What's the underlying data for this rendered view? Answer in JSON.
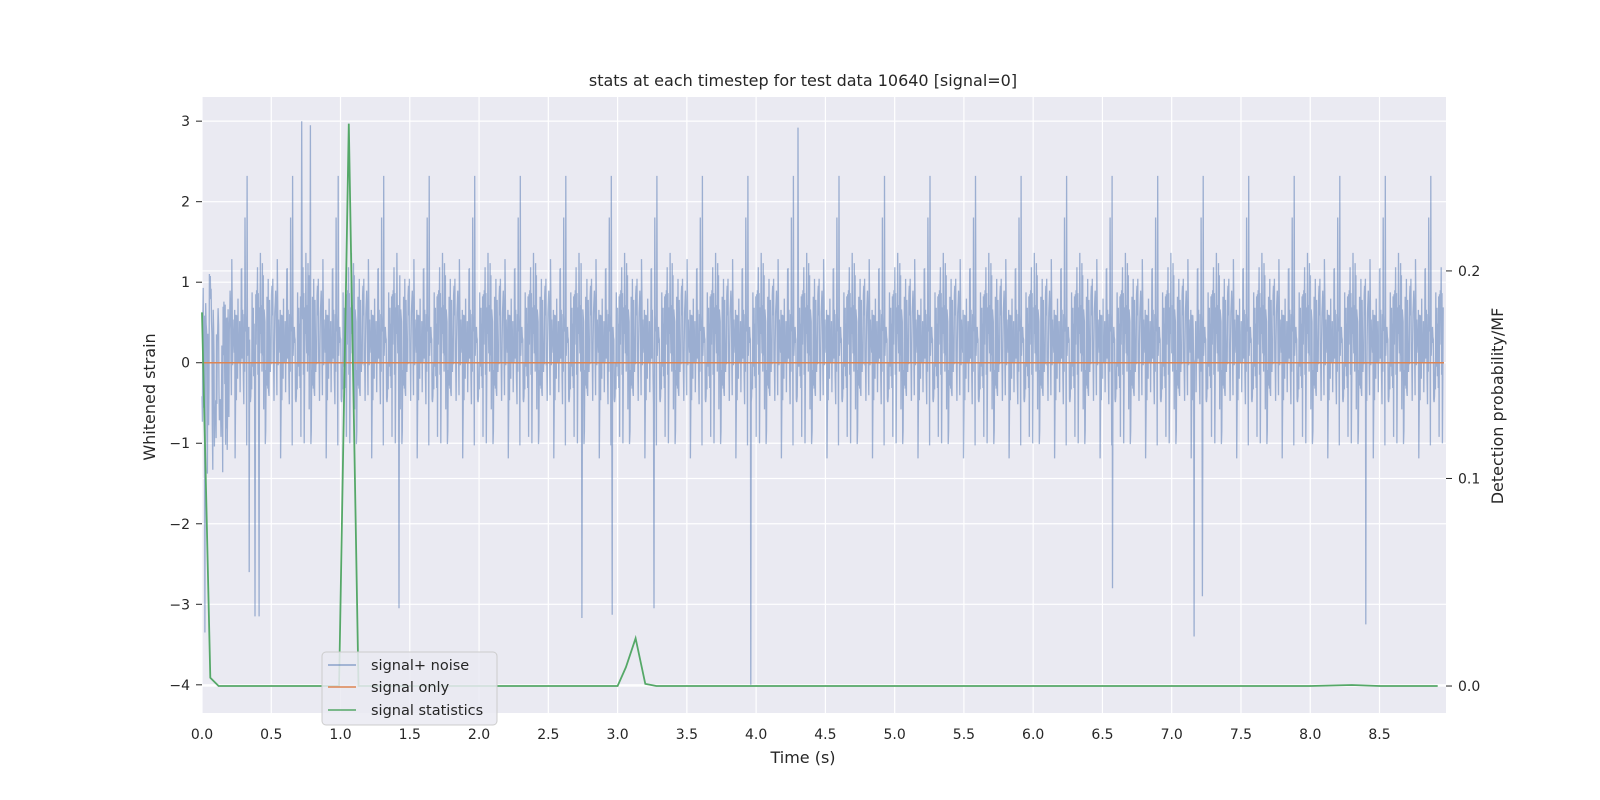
{
  "chart_data": {
    "type": "line",
    "title": "stats at each timestep for test data 10640 [signal=0]",
    "xlabel": "Time (s)",
    "ylabel": "Whitened strain",
    "y2label": "Detection probability/MF",
    "xlim": [
      0,
      8.98
    ],
    "ylim": [
      -4.35,
      3.3
    ],
    "y2lim": [
      -0.013,
      0.2838
    ],
    "x_ticks": [
      "0.0",
      "0.5",
      "1.0",
      "1.5",
      "2.0",
      "2.5",
      "3.0",
      "3.5",
      "4.0",
      "4.5",
      "5.0",
      "5.5",
      "6.0",
      "6.5",
      "7.0",
      "7.5",
      "8.0",
      "8.5"
    ],
    "y_ticks": [
      "3",
      "2",
      "1",
      "0",
      "−1",
      "−2",
      "−3",
      "−4"
    ],
    "y2_ticks": [
      "0.2",
      "0.1",
      "0.0"
    ],
    "grid": true,
    "legend_position": "lower-left",
    "colors": {
      "plot_background": "#eaeaf2",
      "grid": "#ffffff",
      "signal_noise": "#4c72b0",
      "signal_only": "#dd8452",
      "signal_statistics": "#55a868"
    },
    "series": [
      {
        "name": "signal+ noise",
        "axis": "left",
        "description_values": "dense whitened noise, roughly within ±2.5",
        "peaks": [
          [
            0.02,
            -3.35
          ],
          [
            0.38,
            -3.15
          ],
          [
            0.41,
            -3.15
          ],
          [
            0.72,
            3.0
          ],
          [
            0.78,
            2.95
          ],
          [
            1.42,
            -3.05
          ],
          [
            2.74,
            -3.17
          ],
          [
            2.96,
            -3.13
          ],
          [
            3.26,
            -3.05
          ],
          [
            3.96,
            -4.0
          ],
          [
            4.3,
            2.92
          ],
          [
            6.57,
            -2.8
          ],
          [
            7.16,
            -3.4
          ],
          [
            7.22,
            -2.9
          ],
          [
            8.4,
            -3.25
          ],
          [
            0.34,
            -2.6
          ]
        ]
      },
      {
        "name": "signal only",
        "axis": "left",
        "x": [
          0,
          8.98
        ],
        "y": [
          0,
          0
        ]
      },
      {
        "name": "signal statistics",
        "axis": "right",
        "x": [
          0.0,
          0.06,
          0.12,
          0.2,
          0.5,
          0.9,
          0.99,
          1.06,
          1.13,
          1.2,
          1.5,
          2.0,
          2.5,
          2.9,
          3.0,
          3.06,
          3.13,
          3.2,
          3.28,
          3.5,
          4.0,
          5.0,
          6.0,
          7.0,
          8.0,
          8.3,
          8.5,
          8.92
        ],
        "y": [
          0.18,
          0.004,
          0.0,
          0.0,
          0.0,
          0.0,
          0.0,
          0.271,
          0.0,
          0.0,
          0.0,
          0.0,
          0.0,
          0.0,
          0.0,
          0.009,
          0.023,
          0.001,
          0.0,
          0.0,
          0.0,
          0.0,
          0.0,
          0.0,
          0.0,
          0.0005,
          0.0,
          0.0
        ]
      }
    ]
  }
}
